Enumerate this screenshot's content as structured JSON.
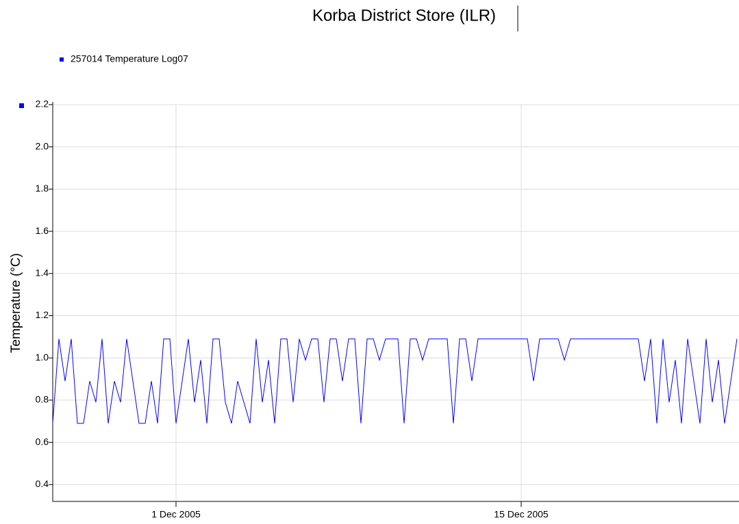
{
  "chart_data": {
    "type": "line",
    "title": "Korba District Store (ILR)",
    "ylabel": "Temperature (°C)",
    "x": [
      "2005-11-26 00:00",
      "2005-11-26 06:00",
      "2005-11-26 12:00",
      "2005-11-26 18:00",
      "2005-11-27 00:00",
      "2005-11-27 06:00",
      "2005-11-27 12:00",
      "2005-11-27 18:00",
      "2005-11-28 00:00",
      "2005-11-28 06:00",
      "2005-11-28 12:00",
      "2005-11-28 18:00",
      "2005-11-29 00:00",
      "2005-11-29 06:00",
      "2005-11-29 12:00",
      "2005-11-29 18:00",
      "2005-11-30 00:00",
      "2005-11-30 06:00",
      "2005-11-30 12:00",
      "2005-11-30 18:00",
      "2005-12-01 00:00",
      "2005-12-01 06:00",
      "2005-12-01 12:00",
      "2005-12-01 18:00",
      "2005-12-02 00:00",
      "2005-12-02 06:00",
      "2005-12-02 12:00",
      "2005-12-02 18:00",
      "2005-12-03 00:00",
      "2005-12-03 06:00",
      "2005-12-03 12:00",
      "2005-12-03 18:00",
      "2005-12-04 00:00",
      "2005-12-04 06:00",
      "2005-12-04 12:00",
      "2005-12-04 18:00",
      "2005-12-05 00:00",
      "2005-12-05 06:00",
      "2005-12-05 12:00",
      "2005-12-05 18:00",
      "2005-12-06 00:00",
      "2005-12-06 06:00",
      "2005-12-06 12:00",
      "2005-12-06 18:00",
      "2005-12-07 00:00",
      "2005-12-07 06:00",
      "2005-12-07 12:00",
      "2005-12-07 18:00",
      "2005-12-08 00:00",
      "2005-12-08 06:00",
      "2005-12-08 12:00",
      "2005-12-08 18:00",
      "2005-12-09 00:00",
      "2005-12-09 06:00",
      "2005-12-09 12:00",
      "2005-12-09 18:00",
      "2005-12-10 00:00",
      "2005-12-10 06:00",
      "2005-12-10 12:00",
      "2005-12-10 18:00",
      "2005-12-11 00:00",
      "2005-12-11 06:00",
      "2005-12-11 12:00",
      "2005-12-11 18:00",
      "2005-12-12 00:00",
      "2005-12-12 06:00",
      "2005-12-12 12:00",
      "2005-12-12 18:00",
      "2005-12-13 00:00",
      "2005-12-13 06:00",
      "2005-12-13 12:00",
      "2005-12-13 18:00",
      "2005-12-14 00:00",
      "2005-12-14 06:00",
      "2005-12-14 12:00",
      "2005-12-14 18:00",
      "2005-12-15 00:00",
      "2005-12-15 06:00",
      "2005-12-15 12:00",
      "2005-12-15 18:00",
      "2005-12-16 00:00",
      "2005-12-16 06:00",
      "2005-12-16 12:00",
      "2005-12-16 18:00",
      "2005-12-17 00:00",
      "2005-12-17 06:00",
      "2005-12-17 12:00",
      "2005-12-17 18:00",
      "2005-12-18 00:00",
      "2005-12-18 06:00",
      "2005-12-18 12:00",
      "2005-12-18 18:00",
      "2005-12-19 00:00",
      "2005-12-19 06:00",
      "2005-12-19 12:00",
      "2005-12-19 18:00",
      "2005-12-20 00:00",
      "2005-12-20 06:00",
      "2005-12-20 12:00",
      "2005-12-20 18:00",
      "2005-12-21 00:00",
      "2005-12-21 06:00",
      "2005-12-21 12:00",
      "2005-12-21 18:00",
      "2005-12-22 00:00",
      "2005-12-22 06:00",
      "2005-12-22 12:00",
      "2005-12-22 18:00",
      "2005-12-23 00:00",
      "2005-12-23 06:00",
      "2005-12-23 12:00",
      "2005-12-23 18:00"
    ],
    "series": [
      {
        "name": "257014  Temperature Log07",
        "color": "#0000ff",
        "values": [
          0.69,
          1.09,
          0.89,
          1.09,
          0.69,
          0.69,
          0.89,
          0.79,
          1.09,
          0.69,
          0.89,
          0.79,
          1.09,
          0.89,
          0.69,
          0.69,
          0.89,
          0.69,
          1.09,
          1.09,
          0.69,
          0.89,
          1.09,
          0.79,
          0.99,
          0.69,
          1.09,
          1.09,
          0.79,
          0.69,
          0.89,
          0.79,
          0.69,
          1.09,
          0.79,
          0.99,
          0.69,
          1.09,
          1.09,
          0.79,
          1.09,
          0.99,
          1.09,
          1.09,
          0.79,
          1.09,
          1.09,
          0.89,
          1.09,
          1.09,
          0.69,
          1.09,
          1.09,
          0.99,
          1.09,
          1.09,
          1.09,
          0.69,
          1.09,
          1.09,
          0.99,
          1.09,
          1.09,
          1.09,
          1.09,
          0.69,
          1.09,
          1.09,
          0.89,
          1.09,
          1.09,
          1.09,
          1.09,
          1.09,
          1.09,
          1.09,
          1.09,
          1.09,
          0.89,
          1.09,
          1.09,
          1.09,
          1.09,
          0.99,
          1.09,
          1.09,
          1.09,
          1.09,
          1.09,
          1.09,
          1.09,
          1.09,
          1.09,
          1.09,
          1.09,
          1.09,
          0.89,
          1.09,
          0.69,
          1.09,
          0.79,
          0.99,
          0.69,
          1.09,
          0.89,
          0.69,
          1.09,
          0.79,
          0.99,
          0.69,
          0.89,
          1.09
        ]
      }
    ],
    "xlim": [
      "2005-11-26 00:00",
      "2005-12-23 20:00"
    ],
    "xticks": [
      {
        "value": "2005-12-01 00:00",
        "label": "1 Dec 2005"
      },
      {
        "value": "2005-12-15 00:00",
        "label": "15 Dec 2005"
      }
    ],
    "ylim": [
      0.32,
      2.2
    ],
    "yticks": [
      0.4,
      0.6,
      0.8,
      {
        "value": 1,
        "label": "1.0"
      },
      1.2,
      1.4,
      1.6,
      1.8,
      {
        "value": 2,
        "label": "2.0"
      },
      2.2
    ],
    "grid": true
  }
}
